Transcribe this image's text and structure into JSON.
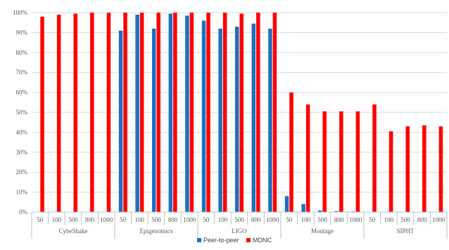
{
  "chart_data": {
    "type": "bar",
    "groups": [
      {
        "name": "CybeShake",
        "categories": [
          "50",
          "100",
          "500",
          "800",
          "1000"
        ]
      },
      {
        "name": "Epigenomics",
        "categories": [
          "50",
          "100",
          "500",
          "800",
          "1000"
        ]
      },
      {
        "name": "LIGO",
        "categories": [
          "50",
          "100",
          "500",
          "800",
          "1000"
        ]
      },
      {
        "name": "Montage",
        "categories": [
          "50",
          "100",
          "500",
          "800",
          "1000"
        ]
      },
      {
        "name": "SIPHT",
        "categories": [
          "50",
          "100",
          "500",
          "800",
          "1000"
        ]
      }
    ],
    "series": [
      {
        "name": "Peer-to-peer",
        "color": "#1f6fc0",
        "values": [
          0,
          0,
          0,
          0,
          0,
          91,
          99,
          92,
          99.5,
          98.5,
          96,
          92,
          93,
          94.5,
          92,
          8,
          4,
          0.8,
          0.5,
          0.3,
          0,
          0,
          0,
          0,
          0
        ]
      },
      {
        "name": "MDNC",
        "color": "#ff0000",
        "values": [
          98,
          99,
          99.5,
          100,
          100,
          100,
          100,
          100,
          100,
          100,
          100,
          100,
          99.5,
          100,
          100,
          60,
          54,
          50.5,
          50.5,
          50.5,
          54,
          40.5,
          43,
          43.5,
          43
        ]
      }
    ],
    "yticks": [
      "0%",
      "10%",
      "20%",
      "30%",
      "40%",
      "50%",
      "60%",
      "70%",
      "80%",
      "90%",
      "100%"
    ],
    "ylim": [
      0,
      100
    ],
    "grid": true,
    "legend": "bottom-center"
  }
}
